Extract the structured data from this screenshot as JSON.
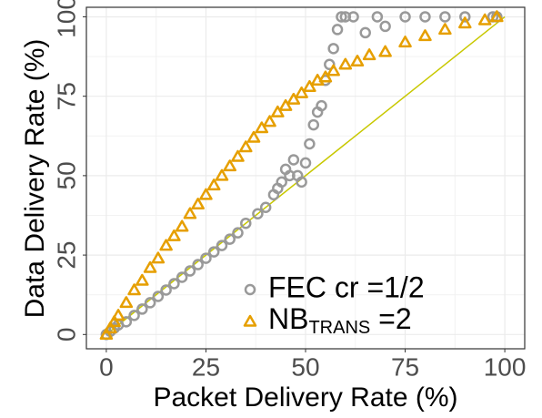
{
  "chart_data": {
    "type": "scatter",
    "x_label": "Packet Delivery Rate (%)",
    "y_label": "Data Delivery Rate (%)",
    "xlim": [
      -5,
      105
    ],
    "ylim": [
      -4.5,
      103
    ],
    "xticks": [
      0,
      25,
      50,
      75,
      100
    ],
    "yticks": [
      0,
      25,
      50,
      75,
      100
    ],
    "grid": true,
    "legend": "bottom-right",
    "reference_line": {
      "color": "#c8c800",
      "x": [
        0,
        100
      ],
      "y": [
        0,
        100
      ]
    },
    "series": [
      {
        "name": "FEC cr =1/2",
        "color": "#999999",
        "marker": "circle",
        "x": [
          0,
          1,
          2,
          3,
          5,
          7,
          9,
          11,
          13,
          15,
          17,
          19,
          21,
          23,
          25,
          27,
          29,
          31,
          33,
          35,
          38,
          40,
          42,
          43,
          44,
          45,
          46,
          47,
          48,
          49,
          50,
          51,
          52,
          53,
          54,
          55,
          56,
          57,
          58,
          59,
          60,
          62,
          65,
          68,
          70,
          75,
          80,
          85,
          90,
          97,
          98
        ],
        "values": [
          0,
          1,
          2,
          3,
          4,
          6,
          8,
          10,
          12,
          14,
          16,
          18,
          20,
          22,
          24,
          26,
          28,
          30,
          32,
          35,
          38,
          40,
          44,
          46,
          48,
          52,
          50,
          55,
          50,
          48,
          54,
          60,
          66,
          70,
          72,
          80,
          85,
          90,
          96,
          100,
          100,
          100,
          95,
          100,
          97,
          100,
          100,
          100,
          100,
          100,
          100
        ]
      },
      {
        "name": [
          "NB",
          "TRANS",
          " =2"
        ],
        "color": "#e69f00",
        "marker": "triangle",
        "x": [
          0,
          1,
          2,
          3,
          5,
          7,
          9,
          11,
          13,
          15,
          17,
          19,
          21,
          23,
          25,
          27,
          29,
          31,
          33,
          35,
          37,
          39,
          41,
          43,
          45,
          47,
          49,
          51,
          53,
          55,
          57,
          60,
          63,
          66,
          70,
          75,
          80,
          85,
          90,
          95,
          98
        ],
        "values": [
          0,
          2,
          4,
          6,
          10,
          14,
          17,
          21,
          24,
          28,
          31,
          34,
          38,
          41,
          44,
          47,
          50,
          53,
          56,
          59,
          62,
          65,
          67,
          70,
          72,
          74,
          76,
          78,
          80,
          81,
          83,
          85,
          86,
          88,
          89,
          92,
          94,
          96,
          98,
          99,
          100
        ]
      }
    ]
  }
}
